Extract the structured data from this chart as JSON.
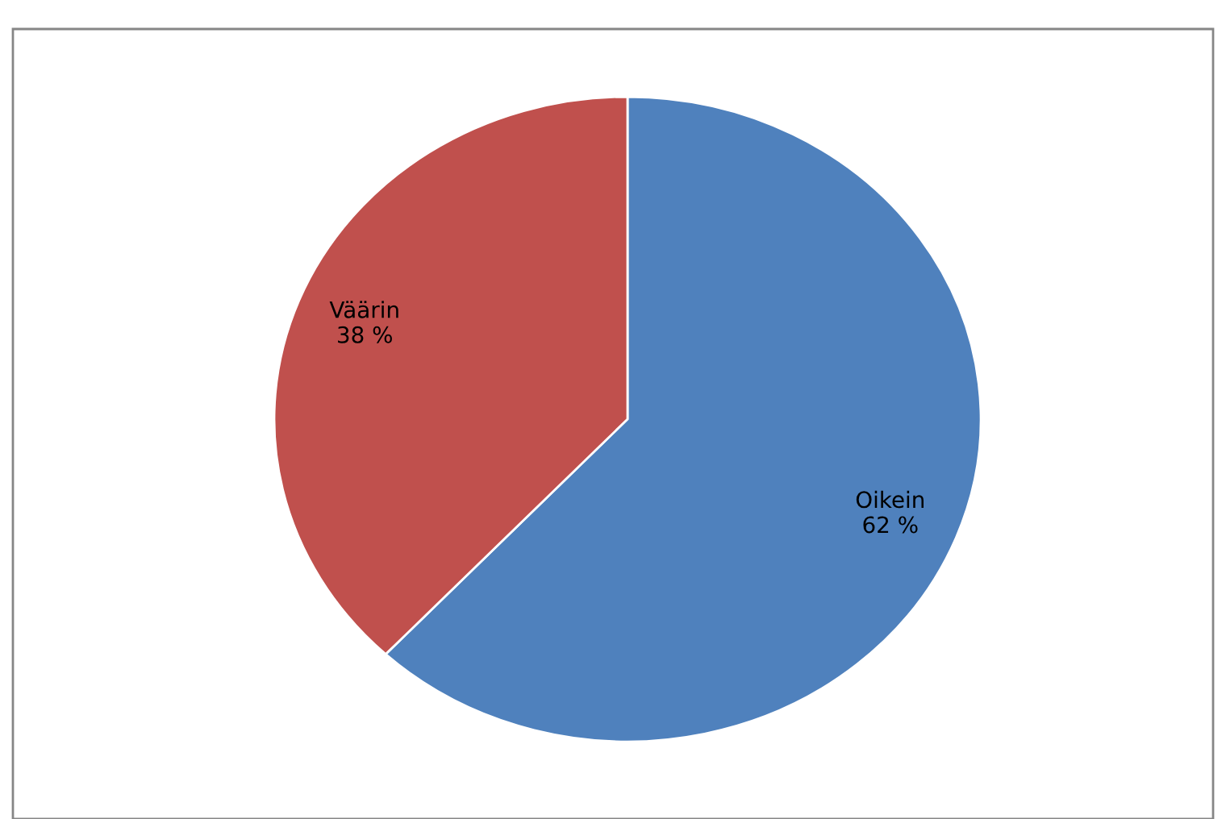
{
  "chart_data": {
    "type": "pie",
    "categories": [
      "Oikein",
      "Väärin"
    ],
    "values": [
      62,
      38
    ],
    "colors": [
      "#4f81bd",
      "#c0504d"
    ],
    "value_labels": [
      "62 %",
      "38 %"
    ]
  }
}
